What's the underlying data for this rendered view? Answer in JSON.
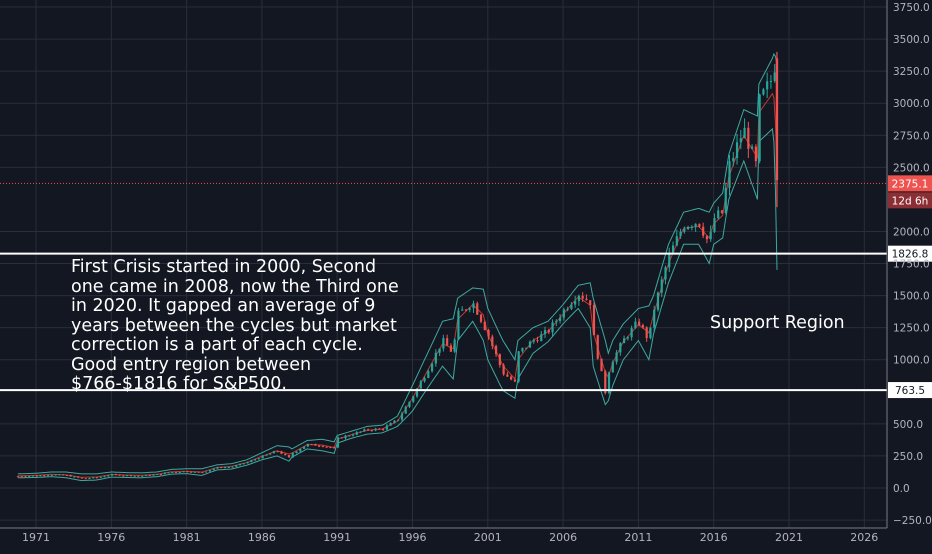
{
  "chart_data": {
    "type": "candlestick",
    "x_ticks": [
      "1971",
      "1976",
      "1981",
      "1986",
      "1991",
      "1996",
      "2001",
      "2006",
      "2011",
      "2016",
      "2021",
      "2026"
    ],
    "y_ticks": [
      "3750.0",
      "3500.0",
      "3250.0",
      "3000.0",
      "2750.0",
      "2500.0",
      "2000.0",
      "1750.0",
      "1500.0",
      "1250.0",
      "1000.0",
      "500.0",
      "250.0",
      "0.0",
      "−250.0"
    ],
    "xlim": [
      1969.0,
      2027.5
    ],
    "ylim": [
      -280,
      3830
    ],
    "grid": true,
    "close_series": {
      "x": [
        1969.8,
        1971,
        1972,
        1973,
        1974,
        1975,
        1976,
        1977,
        1978,
        1979,
        1980,
        1981,
        1982,
        1983,
        1984,
        1985,
        1986,
        1987,
        1987.8,
        1988,
        1989,
        1990,
        1990.8,
        1991,
        1992,
        1993,
        1994,
        1995,
        1996,
        1997,
        1998,
        1998.7,
        1999,
        2000,
        2000.7,
        2001,
        2002,
        2002.8,
        2003,
        2004,
        2005,
        2006,
        2007,
        2007.8,
        2008,
        2008.8,
        2009,
        2009.3,
        2010,
        2011,
        2011.7,
        2012,
        2013,
        2014,
        2015,
        2015.7,
        2016,
        2016.6,
        2017,
        2018,
        2018.9,
        2019,
        2019.9,
        2020.05,
        2020.2
      ],
      "y": [
        92,
        96,
        105,
        100,
        75,
        80,
        105,
        98,
        95,
        105,
        125,
        130,
        120,
        160,
        165,
        200,
        245,
        290,
        235,
        270,
        340,
        330,
        310,
        385,
        420,
        455,
        460,
        530,
        710,
        920,
        1150,
        1050,
        1350,
        1450,
        1280,
        1200,
        900,
        820,
        1050,
        1150,
        1220,
        1380,
        1520,
        1450,
        1200,
        750,
        900,
        1000,
        1150,
        1300,
        1150,
        1380,
        1800,
        2050,
        2080,
        1900,
        2100,
        2150,
        2500,
        2800,
        2480,
        3000,
        3200,
        3300,
        2400
      ],
      "upper_band": [
        110,
        115,
        125,
        125,
        110,
        110,
        125,
        120,
        118,
        125,
        145,
        150,
        150,
        180,
        190,
        220,
        275,
        330,
        320,
        305,
        370,
        380,
        360,
        410,
        445,
        480,
        490,
        560,
        800,
        1050,
        1300,
        1320,
        1480,
        1560,
        1550,
        1400,
        1150,
        1000,
        1150,
        1250,
        1300,
        1430,
        1580,
        1600,
        1480,
        1150,
        1050,
        1150,
        1280,
        1400,
        1420,
        1500,
        1900,
        2150,
        2180,
        2150,
        2220,
        2300,
        2600,
        2950,
        2900,
        3150,
        3350,
        3400,
        3300
      ],
      "lower_band": [
        80,
        82,
        88,
        80,
        58,
        62,
        85,
        82,
        80,
        88,
        108,
        112,
        98,
        140,
        148,
        178,
        220,
        250,
        210,
        240,
        305,
        290,
        270,
        350,
        390,
        420,
        430,
        480,
        600,
        780,
        950,
        850,
        1150,
        1300,
        1150,
        1000,
        760,
        700,
        850,
        1050,
        1140,
        1280,
        1400,
        1250,
        950,
        650,
        680,
        800,
        1000,
        1150,
        1000,
        1200,
        1600,
        1900,
        1900,
        1750,
        1900,
        1950,
        2250,
        2550,
        2250,
        2700,
        2800,
        2650,
        1700
      ]
    },
    "support_levels": [
      {
        "value": 1826.8,
        "label": "1826.8"
      },
      {
        "value": 763.5,
        "label": "763.5"
      }
    ],
    "current_price": {
      "value": 2375.1,
      "label": "2375.1",
      "countdown": "12d 6h"
    },
    "annotations": {
      "crisis_text": "First Crisis started in 2000, Second one came in 2008, now the Third one in 2020. It gapped an average of 9 years between the cycles but market correction is a part of each cycle. Good entry region between $766-$1816 for S&P500.",
      "support_region": "Support Region"
    },
    "colors": {
      "background": "#131722",
      "grid": "#2a2e39",
      "up": "#26a69a",
      "down": "#ef5350",
      "band": "#3fa9a0",
      "ma": "#c0392b",
      "support_line": "#ffffff",
      "price_line": "#ef5350",
      "axis_text": "#b2b5be"
    }
  }
}
